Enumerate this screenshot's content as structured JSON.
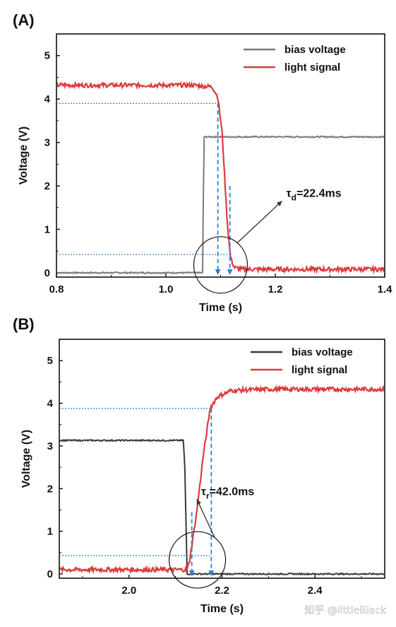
{
  "watermark": "知乎 @littleBlack",
  "colors": {
    "bias": "#7a7a7a",
    "bias_b": "#3a3a3a",
    "light": "#dd3b3b",
    "guide": "#2f7fd6"
  },
  "chart_data": [
    {
      "panel_label": "(A)",
      "type": "line",
      "xlabel": "Time (s)",
      "ylabel": "Voltage (V)",
      "xlim": [
        0.8,
        1.4
      ],
      "ylim": [
        -0.1,
        5.5
      ],
      "x_ticks": [
        0.8,
        1.0,
        1.2,
        1.4
      ],
      "x_tick_labels": [
        "0.8",
        "1.0",
        "1.2",
        "1.4"
      ],
      "y_ticks": [
        0,
        1,
        2,
        3,
        4,
        5
      ],
      "y_tick_labels": [
        "0",
        "1",
        "2",
        "3",
        "4",
        "5"
      ],
      "legend_position": "top-right",
      "series": [
        {
          "name": "bias voltage",
          "x": [
            0.8,
            1.068,
            1.069,
            1.4
          ],
          "y": [
            0.0,
            0.0,
            3.13,
            3.13
          ],
          "noise": 0.015
        },
        {
          "name": "light signal",
          "x": [
            0.8,
            1.05,
            1.085,
            1.095,
            1.103,
            1.112,
            1.118,
            1.125,
            1.14,
            1.4
          ],
          "y": [
            4.32,
            4.32,
            4.28,
            4.05,
            3.2,
            1.2,
            0.35,
            0.12,
            0.08,
            0.08
          ],
          "noise": 0.05
        }
      ],
      "guides": {
        "y_high": 3.9,
        "y_low": 0.42,
        "x_start": 1.095,
        "x_end": 1.117,
        "guide_xmax": 1.095
      },
      "annotation": {
        "label": "τ",
        "sub": "d",
        "value": "=22.4ms",
        "circle_center": [
          1.1,
          0.18
        ],
        "text_at": [
          1.22,
          1.75
        ]
      }
    },
    {
      "panel_label": "(B)",
      "type": "line",
      "xlabel": "Time (s)",
      "ylabel": "Voltage (V)",
      "xlim": [
        1.85,
        2.55
      ],
      "ylim": [
        -0.1,
        5.5
      ],
      "x_ticks": [
        2.0,
        2.2,
        2.4
      ],
      "x_tick_labels": [
        "2.0",
        "2.2",
        "2.4"
      ],
      "y_ticks": [
        0,
        1,
        2,
        3,
        4,
        5
      ],
      "y_tick_labels": [
        "0",
        "1",
        "2",
        "3",
        "4",
        "5"
      ],
      "legend_position": "top-right",
      "series": [
        {
          "name": "bias voltage",
          "x": [
            1.86,
            2.117,
            2.12,
            2.125,
            2.55
          ],
          "y": [
            3.13,
            3.13,
            2.5,
            0.0,
            0.0
          ],
          "noise": 0.015
        },
        {
          "name": "light signal",
          "x": [
            1.86,
            2.125,
            2.13,
            2.145,
            2.16,
            2.175,
            2.19,
            2.22,
            2.3,
            2.55
          ],
          "y": [
            0.1,
            0.1,
            0.3,
            1.4,
            2.8,
            3.9,
            4.15,
            4.3,
            4.33,
            4.33
          ],
          "noise": 0.05
        }
      ],
      "guides": {
        "y_high": 3.88,
        "y_low": 0.43,
        "x_start": 2.135,
        "x_end": 2.177,
        "guide_xmax": 2.177
      },
      "annotation": {
        "label": "τ",
        "sub": "r",
        "value": "=42.0ms",
        "circle_center": [
          2.147,
          0.33
        ],
        "text_at": [
          2.155,
          1.85
        ]
      }
    }
  ]
}
